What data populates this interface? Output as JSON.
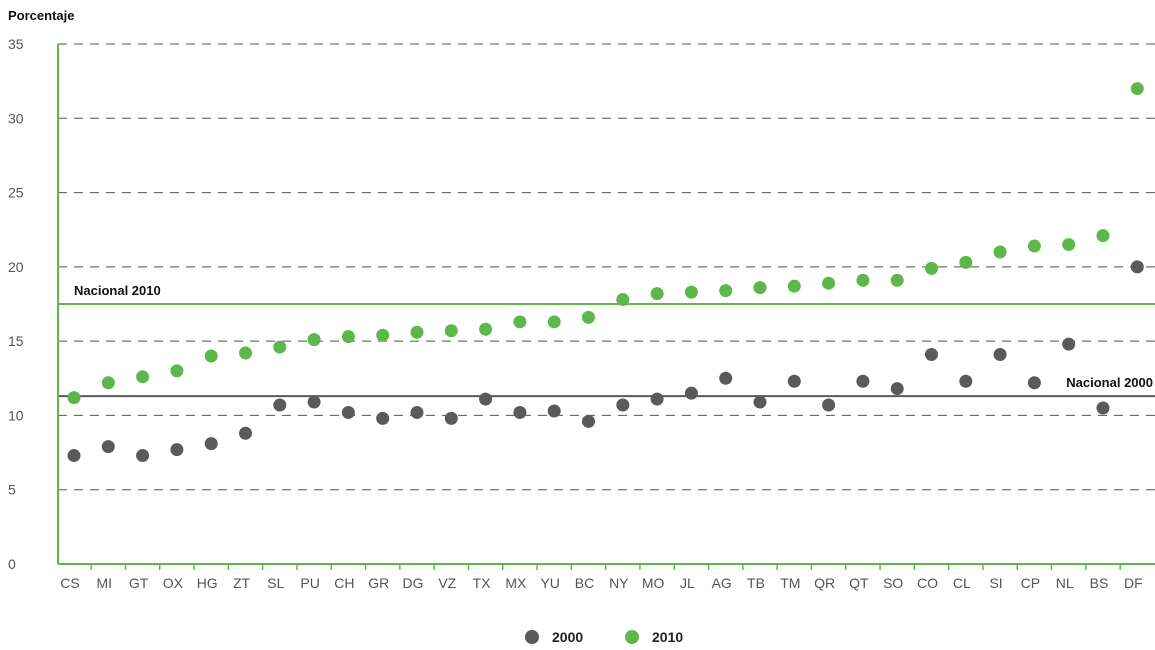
{
  "chart_data": {
    "type": "scatter",
    "ylabel": "Porcentaje",
    "xlabel": "",
    "ylim": [
      0,
      35
    ],
    "yticks": [
      0,
      5,
      10,
      15,
      20,
      25,
      30,
      35
    ],
    "grid": "horizontal dashed",
    "legend_position": "bottom-center",
    "categories": [
      "CS",
      "MI",
      "GT",
      "OX",
      "HG",
      "ZT",
      "SL",
      "PU",
      "CH",
      "GR",
      "DG",
      "VZ",
      "TX",
      "MX",
      "YU",
      "BC",
      "NY",
      "MO",
      "JL",
      "AG",
      "TB",
      "TM",
      "QR",
      "QT",
      "SO",
      "CO",
      "CL",
      "SI",
      "CP",
      "NL",
      "BS",
      "DF"
    ],
    "series": [
      {
        "name": "2000",
        "color": "#5a5a5a",
        "values": [
          7.3,
          7.9,
          7.3,
          7.7,
          8.1,
          8.8,
          10.7,
          10.9,
          10.2,
          9.8,
          10.2,
          9.8,
          11.1,
          10.2,
          10.3,
          9.6,
          10.7,
          11.1,
          11.5,
          12.5,
          10.9,
          12.3,
          10.7,
          12.3,
          11.8,
          14.1,
          12.3,
          14.1,
          12.2,
          14.8,
          10.5,
          20.0
        ]
      },
      {
        "name": "2010",
        "color": "#5cb84a",
        "values": [
          11.2,
          12.2,
          12.6,
          13.0,
          14.0,
          14.2,
          14.6,
          15.1,
          15.3,
          15.4,
          15.6,
          15.7,
          15.8,
          16.3,
          16.3,
          16.6,
          17.8,
          18.2,
          18.3,
          18.4,
          18.6,
          18.7,
          18.9,
          19.1,
          19.1,
          19.9,
          20.3,
          21.0,
          21.4,
          21.5,
          22.1,
          32.0
        ]
      }
    ],
    "reference_lines": [
      {
        "label": "Nacional 2010",
        "value": 17.5,
        "color": "#5cb84a",
        "label_side": "left"
      },
      {
        "label": "Nacional 2000",
        "value": 11.3,
        "color": "#5a5a5a",
        "label_side": "right"
      }
    ]
  }
}
